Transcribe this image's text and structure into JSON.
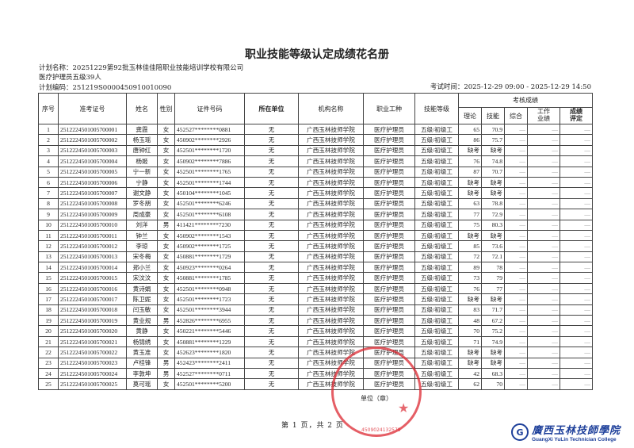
{
  "title": "职业技能等级认定成绩花名册",
  "plan_name": "计划名称：20251229第92批玉林佳佳陪职业技能培训学校有限公司",
  "plan_group": "医疗护理员五级39人",
  "plan_code": "计划编码：251219S0000450910010090",
  "exam_time": "考试时间：2025-12-29 09:00 - 2025-12-29 14:50",
  "headers": {
    "seq": "序号",
    "ticket": "准考证号",
    "name": "姓名",
    "gender": "性别",
    "id": "证件号码",
    "unit": "所在单位",
    "org": "机构名称",
    "job": "职业工种",
    "level": "技能等级",
    "scores": "考核成绩",
    "theory": "理论",
    "skill": "技能",
    "overall": "综合",
    "work": "工作\n业绩",
    "rating": "成绩\n评定"
  },
  "rows": [
    [
      "1",
      "2512224501005700001",
      "龚霞",
      "女",
      "452527********0881",
      "无",
      "广西玉林技师学院",
      "医疗护理员",
      "五级/初级工",
      "65",
      "70.9",
      "—",
      "—",
      "—"
    ],
    [
      "2",
      "2512224501005700002",
      "杨玉瑶",
      "女",
      "450902********2926",
      "无",
      "广西玉林技师学院",
      "医疗护理员",
      "五级/初级工",
      "86",
      "75.7",
      "—",
      "—",
      "—"
    ],
    [
      "3",
      "2512224501005700003",
      "唐钟红",
      "女",
      "452501********1720",
      "无",
      "广西玉林技师学院",
      "医疗护理员",
      "五级/初级工",
      "缺考",
      "缺考",
      "—",
      "—",
      "—"
    ],
    [
      "4",
      "2512224501005700004",
      "杨姬",
      "女",
      "450902********7886",
      "无",
      "广西玉林技师学院",
      "医疗护理员",
      "五级/初级工",
      "76",
      "74.8",
      "—",
      "—",
      "—"
    ],
    [
      "5",
      "2512224501005700005",
      "宁一新",
      "女",
      "452501********1765",
      "无",
      "广西玉林技师学院",
      "医疗护理员",
      "五级/初级工",
      "87",
      "70.7",
      "—",
      "—",
      "—"
    ],
    [
      "6",
      "2512224501005700006",
      "宁静",
      "女",
      "452501********1744",
      "无",
      "广西玉林技师学院",
      "医疗护理员",
      "五级/初级工",
      "缺考",
      "缺考",
      "—",
      "—",
      "—"
    ],
    [
      "7",
      "2512224501005700007",
      "谢文静",
      "女",
      "450104********1045",
      "无",
      "广西玉林技师学院",
      "医疗护理员",
      "五级/初级工",
      "缺考",
      "缺考",
      "—",
      "—",
      "—"
    ],
    [
      "8",
      "2512224501005700008",
      "罗冬朋",
      "女",
      "452501********6246",
      "无",
      "广西玉林技师学院",
      "医疗护理员",
      "五级/初级工",
      "63",
      "78.8",
      "—",
      "—",
      "—"
    ],
    [
      "9",
      "2512224501005700009",
      "周成豪",
      "女",
      "452501********6108",
      "无",
      "广西玉林技师学院",
      "医疗护理员",
      "五级/初级工",
      "77",
      "72.9",
      "—",
      "—",
      "—"
    ],
    [
      "10",
      "2512224501005700010",
      "刘洋",
      "男",
      "411421********7230",
      "无",
      "广西玉林技师学院",
      "医疗护理员",
      "五级/初级工",
      "75",
      "80.3",
      "—",
      "—",
      "—"
    ],
    [
      "11",
      "2512224501005700011",
      "钟兰",
      "女",
      "450902********1543",
      "无",
      "广西玉林技师学院",
      "医疗护理员",
      "五级/初级工",
      "缺考",
      "缺考",
      "—",
      "—",
      "—"
    ],
    [
      "12",
      "2512224501005700012",
      "李琼",
      "女",
      "450902********1725",
      "无",
      "广西玉林技师学院",
      "医疗护理员",
      "五级/初级工",
      "85",
      "73.6",
      "—",
      "—",
      "—"
    ],
    [
      "13",
      "2512224501005700013",
      "宋冬梅",
      "女",
      "450881********1729",
      "无",
      "广西玉林技师学院",
      "医疗护理员",
      "五级/初级工",
      "72",
      "72.1",
      "—",
      "—",
      "—"
    ],
    [
      "14",
      "2512224501005700014",
      "郑小兰",
      "女",
      "450923********0264",
      "无",
      "广西玉林技师学院",
      "医疗护理员",
      "五级/初级工",
      "89",
      "78",
      "—",
      "—",
      "—"
    ],
    [
      "15",
      "2512224501005700015",
      "宋汶汶",
      "女",
      "450881********1785",
      "无",
      "广西玉林技师学院",
      "医疗护理员",
      "五级/初级工",
      "73",
      "79",
      "—",
      "—",
      "—"
    ],
    [
      "16",
      "2512224501005700016",
      "黄诗娟",
      "女",
      "452501********0948",
      "无",
      "广西玉林技师学院",
      "医疗护理员",
      "五级/初级工",
      "76",
      "77",
      "—",
      "—",
      "—"
    ],
    [
      "17",
      "2512224501005700017",
      "陈卫妮",
      "女",
      "452501********1723",
      "无",
      "广西玉林技师学院",
      "医疗护理员",
      "五级/初级工",
      "缺考",
      "缺考",
      "—",
      "—",
      "—"
    ],
    [
      "18",
      "2512224501005700018",
      "闫玉敏",
      "女",
      "452501********3944",
      "无",
      "广西玉林技师学院",
      "医疗护理员",
      "五级/初级工",
      "83",
      "71.7",
      "—",
      "—",
      "—"
    ],
    [
      "19",
      "2512224501005700019",
      "黄业规",
      "男",
      "452826********6955",
      "无",
      "广西玉林技师学院",
      "医疗护理员",
      "五级/初级工",
      "48",
      "67.2",
      "—",
      "—",
      "—"
    ],
    [
      "20",
      "2512224501005700020",
      "黄静",
      "女",
      "450221********5446",
      "无",
      "广西玉林技师学院",
      "医疗护理员",
      "五级/初级工",
      "70",
      "75.2",
      "—",
      "—",
      "—"
    ],
    [
      "21",
      "2512224501005700021",
      "杨锦绣",
      "女",
      "450881********1229",
      "无",
      "广西玉林技师学院",
      "医疗护理员",
      "五级/初级工",
      "71",
      "74.9",
      "—",
      "—",
      "—"
    ],
    [
      "22",
      "2512224501005700022",
      "黄玉准",
      "女",
      "452623********1820",
      "无",
      "广西玉林技师学院",
      "医疗护理员",
      "五级/初级工",
      "缺考",
      "缺考",
      "—",
      "—",
      "—"
    ],
    [
      "23",
      "2512224501005700023",
      "卢桂锋",
      "男",
      "452423********2411",
      "无",
      "广西玉林技师学院",
      "医疗护理员",
      "五级/初级工",
      "缺考",
      "缺考",
      "—",
      "—",
      "—"
    ],
    [
      "24",
      "2512224501005700024",
      "李敦坤",
      "男",
      "452527********0711",
      "无",
      "广西玉林技师学院",
      "医疗护理员",
      "五级/初级工",
      "42",
      "68.3",
      "—",
      "—",
      "—"
    ],
    [
      "25",
      "2512224501005700025",
      "莫可瑶",
      "女",
      "452501********5200",
      "无",
      "广西玉林技师学院",
      "医疗护理员",
      "五级/初级工",
      "62",
      "70",
      "—",
      "—",
      "—"
    ]
  ],
  "unit_label": "单位（章）",
  "pagination": "第 1 页，共 2 页",
  "stamp": {
    "number": "4509024132579",
    "color": "#dc2832"
  },
  "logo": {
    "cn": "廣西玉林技師學院",
    "en": "GuangXi YuLin Technician College",
    "color": "#1d3f9a"
  }
}
